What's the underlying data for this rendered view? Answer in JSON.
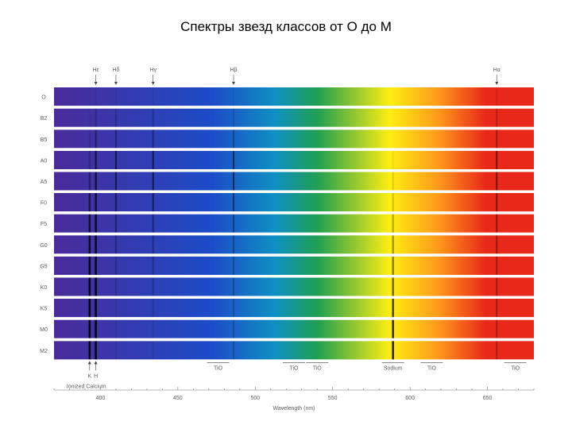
{
  "title": "Спектры звезд классов от О до М",
  "chart_data": {
    "type": "spectrum",
    "xlabel": "Wavelength (nm)",
    "xlim": [
      370,
      680
    ],
    "x_ticks": [
      400,
      450,
      500,
      550,
      600,
      650
    ],
    "x_tick_labels": [
      "400",
      "450",
      "500",
      "550",
      "600",
      "650"
    ],
    "spectral_classes": [
      "O",
      "B2",
      "B5",
      "A0",
      "A5",
      "F0",
      "F5",
      "G0",
      "G5",
      "K0",
      "K5",
      "M0",
      "M2"
    ],
    "colors": {
      "violet": "#4a2a9a",
      "blue": "#1c4cc8",
      "cyan": "#0f8fc4",
      "green": "#1fa050",
      "yellow": "#ffee10",
      "orange": "#ff9a1a",
      "red": "#e82818"
    },
    "top_markers": [
      {
        "label": "Hε",
        "x": 397
      },
      {
        "label": "Hδ",
        "x": 410
      },
      {
        "label": "Hγ",
        "x": 434
      },
      {
        "label": "Hβ",
        "x": 486
      },
      {
        "label": "Hα",
        "x": 656
      }
    ],
    "hydrogen_lines": [
      {
        "x": 397,
        "strength": [
          0.05,
          0.15,
          0.3,
          0.55,
          0.55,
          0.45,
          0.35,
          0.25,
          0.2,
          0.15,
          0.1,
          0.08,
          0.08
        ]
      },
      {
        "x": 410,
        "strength": [
          0.05,
          0.2,
          0.35,
          0.6,
          0.6,
          0.5,
          0.4,
          0.3,
          0.2,
          0.15,
          0.1,
          0.08,
          0.08
        ]
      },
      {
        "x": 434,
        "strength": [
          0.05,
          0.2,
          0.35,
          0.6,
          0.6,
          0.5,
          0.4,
          0.3,
          0.25,
          0.2,
          0.15,
          0.1,
          0.1
        ]
      },
      {
        "x": 486,
        "strength": [
          0.05,
          0.15,
          0.3,
          0.55,
          0.55,
          0.45,
          0.35,
          0.3,
          0.25,
          0.25,
          0.2,
          0.2,
          0.2
        ]
      },
      {
        "x": 656,
        "strength": [
          0.08,
          0.2,
          0.3,
          0.5,
          0.5,
          0.45,
          0.4,
          0.35,
          0.3,
          0.3,
          0.3,
          0.25,
          0.25
        ]
      }
    ],
    "calcium_lines": [
      {
        "x": 393,
        "strength": [
          0.02,
          0.05,
          0.1,
          0.2,
          0.35,
          0.55,
          0.7,
          0.8,
          0.85,
          0.9,
          0.95,
          0.95,
          0.95
        ]
      },
      {
        "x": 397,
        "strength": [
          0.02,
          0.05,
          0.1,
          0.2,
          0.35,
          0.55,
          0.7,
          0.8,
          0.85,
          0.9,
          0.95,
          0.95,
          0.95
        ]
      }
    ],
    "sodium_line": {
      "x": 589,
      "strength": [
        0.0,
        0.0,
        0.0,
        0.05,
        0.1,
        0.15,
        0.25,
        0.35,
        0.45,
        0.55,
        0.7,
        0.8,
        0.85
      ]
    },
    "bottom_markers": [
      {
        "label": "K",
        "x": 393
      },
      {
        "label": "H",
        "x": 397
      },
      {
        "label": "Ionized Calcium",
        "x": 395
      },
      {
        "label": "TiO",
        "x": 476
      },
      {
        "label": "TiO",
        "x": 525
      },
      {
        "label": "TiO",
        "x": 540
      },
      {
        "label": "Sodium",
        "x": 589
      },
      {
        "label": "TiO",
        "x": 614
      },
      {
        "label": "TiO",
        "x": 668
      }
    ]
  }
}
